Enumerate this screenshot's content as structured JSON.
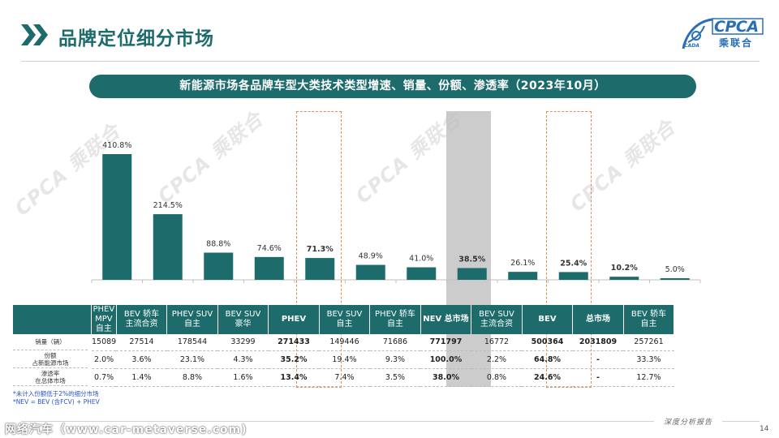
{
  "page": {
    "title": "品牌定位细分市场",
    "banner": "新能源市场各品牌车型大类技术类型增速、销量、份额、渗透率（2023年10月）",
    "page_number": "14",
    "footer_right": "深度分析报告",
    "site_watermark": "网络汽车（www.car-metaverse.com)"
  },
  "logo": {
    "text": "CPCA",
    "sub": "乘联合",
    "mark": "ICADA"
  },
  "watermark_text": "CPCA 乘联合",
  "colors": {
    "brand": "#1d6b6b",
    "bar": "#1d6b6b",
    "highlight": "#e98a4c",
    "nev_shade": "#bfbfbf",
    "footnote": "#2a55c4"
  },
  "chart_data": {
    "type": "bar",
    "categories": [
      {
        "name": "PHEV MPV",
        "sub": "自主"
      },
      {
        "name": "BEV 轿车",
        "sub": "主流合资"
      },
      {
        "name": "PHEV SUV",
        "sub": "自主"
      },
      {
        "name": "BEV SUV",
        "sub": "豪华"
      },
      {
        "name": "PHEV",
        "sub": ""
      },
      {
        "name": "BEV SUV",
        "sub": "自主"
      },
      {
        "name": "PHEV 轿车",
        "sub": "自主"
      },
      {
        "name": "NEV 总市场",
        "sub": ""
      },
      {
        "name": "BEV SUV",
        "sub": "主流合资"
      },
      {
        "name": "BEV",
        "sub": ""
      },
      {
        "name": "总市场",
        "sub": ""
      },
      {
        "name": "BEV 轿车",
        "sub": "自主"
      }
    ],
    "values": [
      410.8,
      214.5,
      88.8,
      74.6,
      71.3,
      48.9,
      41.0,
      38.5,
      26.1,
      25.4,
      10.2,
      5.0
    ],
    "labels": [
      "410.8%",
      "214.5%",
      "88.8%",
      "74.6%",
      "71.3%",
      "48.9%",
      "41.0%",
      "38.5%",
      "26.1%",
      "25.4%",
      "10.2%",
      "5.0%"
    ],
    "bold_labels": [
      4,
      7,
      9,
      10
    ],
    "highlighted": [
      4,
      9
    ],
    "shaded": [
      7
    ],
    "ylim": [
      0,
      440
    ]
  },
  "table": {
    "rows": [
      {
        "key": "sales",
        "label_lines": [
          "销量（辆）"
        ],
        "values": [
          "15089",
          "27514",
          "178544",
          "33299",
          "271433",
          "149446",
          "71686",
          "771797",
          "16772",
          "500364",
          "2031809",
          "257261"
        ]
      },
      {
        "key": "share",
        "label_lines": [
          "份额",
          "占新能源市场"
        ],
        "values": [
          "2.0%",
          "3.6%",
          "23.1%",
          "4.3%",
          "35.2%",
          "19.4%",
          "9.3%",
          "100.0%",
          "2.2%",
          "64.8%",
          "-",
          "33.3%"
        ]
      },
      {
        "key": "pen",
        "label_lines": [
          "渗透率",
          "在总体市场"
        ],
        "values": [
          "0.7%",
          "1.4%",
          "8.8%",
          "1.6%",
          "13.4%",
          "7.4%",
          "3.5%",
          "38.0%",
          "0.8%",
          "24.6%",
          "-",
          "12.7%"
        ]
      }
    ],
    "bold_columns": [
      4,
      7,
      9,
      10
    ]
  },
  "footnotes": [
    "*未计入份额低于2%的细分市场",
    "*NEV = BEV (含FCV) + PHEV"
  ]
}
